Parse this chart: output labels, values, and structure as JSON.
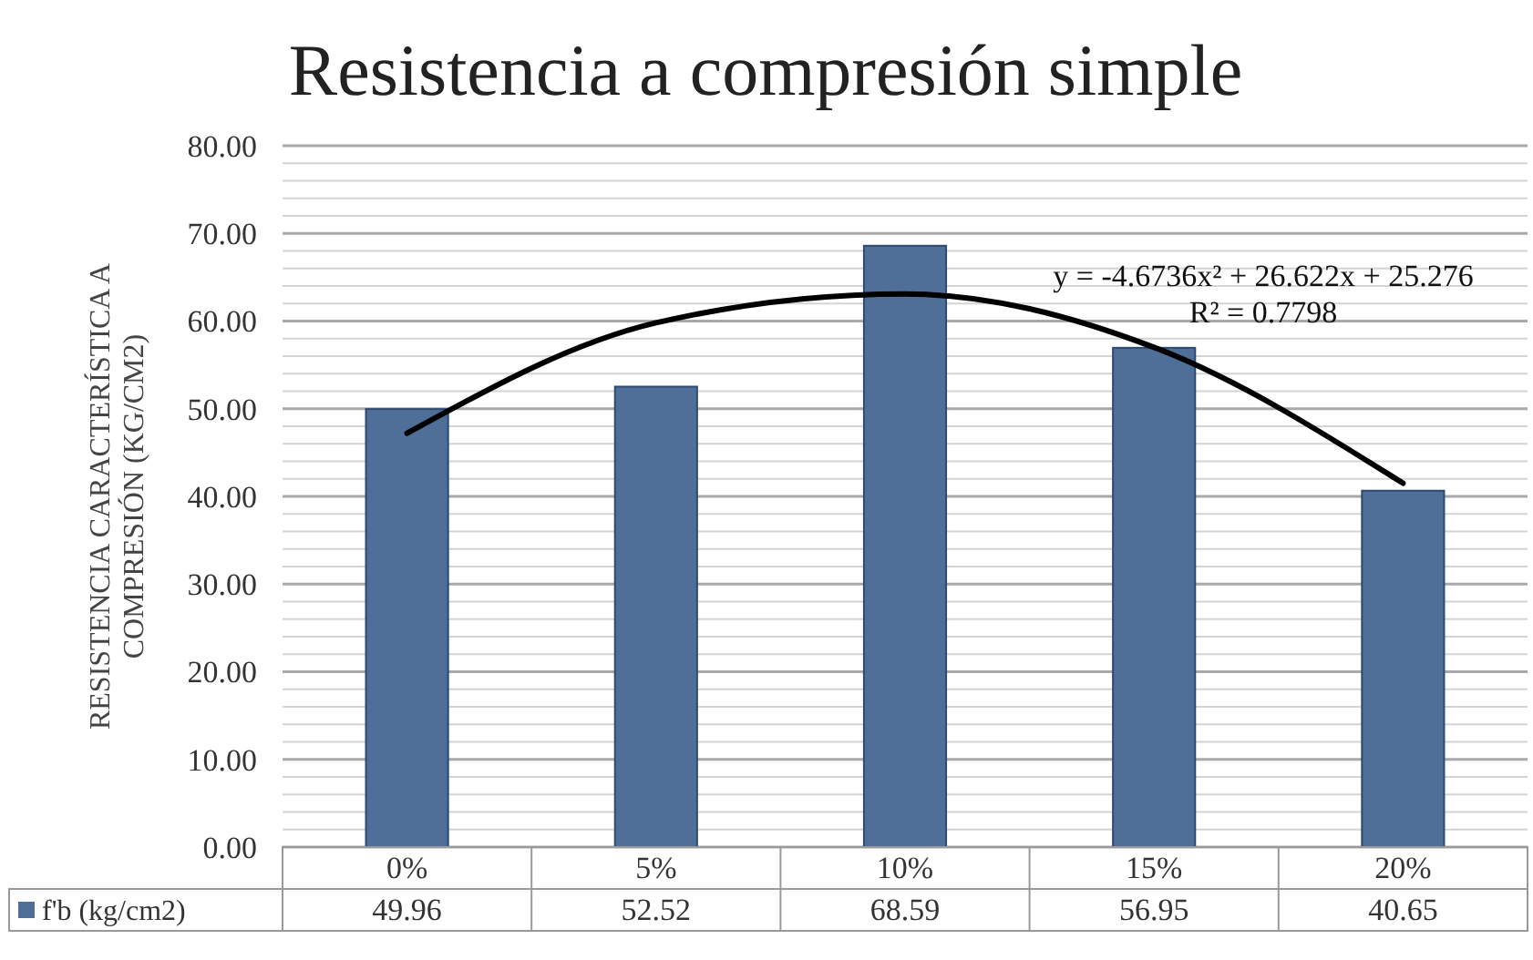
{
  "chart_data": {
    "type": "bar",
    "title": "Resistencia a compresión simple",
    "ylabel": "RESISTENCIA CARACTERÍSTICA A COMPRESIÓN (KG/CM2)",
    "categories": [
      "0%",
      "5%",
      "10%",
      "15%",
      "20%"
    ],
    "series": [
      {
        "name": "f'b (kg/cm2)",
        "color": "#4f6f98",
        "values": [
          49.96,
          52.52,
          68.59,
          56.95,
          40.65
        ],
        "value_labels": [
          "49.96",
          "52.52",
          "68.59",
          "56.95",
          "40.65"
        ]
      },
      {
        "type": "line",
        "color": "#000000",
        "values": [
          47.2,
          59.8,
          63.1,
          57.0,
          41.5
        ]
      }
    ],
    "ylim": [
      0,
      80
    ],
    "yticks": [
      {
        "value": 0,
        "label": "0.00"
      },
      {
        "value": 2,
        "label": null
      },
      {
        "value": 4,
        "label": null
      },
      {
        "value": 6,
        "label": null
      },
      {
        "value": 8,
        "label": null
      },
      {
        "value": 10,
        "label": "10.00"
      },
      {
        "value": 12,
        "label": null
      },
      {
        "value": 14,
        "label": null
      },
      {
        "value": 16,
        "label": null
      },
      {
        "value": 18,
        "label": null
      },
      {
        "value": 20,
        "label": "20.00"
      },
      {
        "value": 22,
        "label": null
      },
      {
        "value": 24,
        "label": null
      },
      {
        "value": 26,
        "label": null
      },
      {
        "value": 28,
        "label": null
      },
      {
        "value": 30,
        "label": "30.00"
      },
      {
        "value": 32,
        "label": null
      },
      {
        "value": 34,
        "label": null
      },
      {
        "value": 36,
        "label": null
      },
      {
        "value": 38,
        "label": null
      },
      {
        "value": 40,
        "label": "40.00"
      },
      {
        "value": 42,
        "label": null
      },
      {
        "value": 44,
        "label": null
      },
      {
        "value": 46,
        "label": null
      },
      {
        "value": 48,
        "label": null
      },
      {
        "value": 50,
        "label": "50.00"
      },
      {
        "value": 52,
        "label": null
      },
      {
        "value": 54,
        "label": null
      },
      {
        "value": 56,
        "label": null
      },
      {
        "value": 58,
        "label": null
      },
      {
        "value": 60,
        "label": "60.00"
      },
      {
        "value": 62,
        "label": null
      },
      {
        "value": 64,
        "label": null
      },
      {
        "value": 66,
        "label": null
      },
      {
        "value": 68,
        "label": null
      },
      {
        "value": 70,
        "label": "70.00"
      },
      {
        "value": 72,
        "label": null
      },
      {
        "value": 74,
        "label": null
      },
      {
        "value": 76,
        "label": null
      },
      {
        "value": 78,
        "label": null
      },
      {
        "value": 80,
        "label": "80.00"
      }
    ],
    "grid": true,
    "legend": "bottom left",
    "annotations": [
      "y = -4.6736x² + 26.622x + 25.276",
      "R² = 0.7798"
    ]
  }
}
